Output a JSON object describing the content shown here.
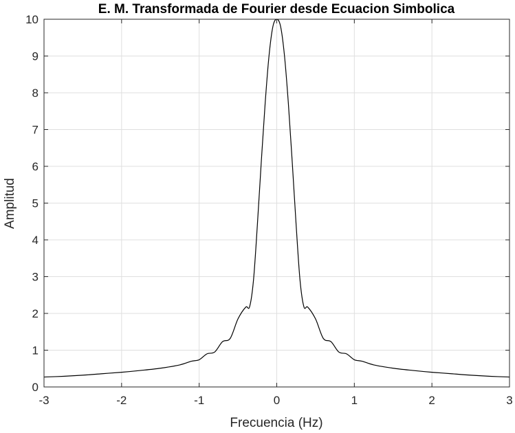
{
  "chart_data": {
    "type": "line",
    "title": "E. M. Transformada de Fourier desde Ecuacion Simbolica",
    "xlabel": "Frecuencia (Hz)",
    "ylabel": "Amplitud",
    "xlim": [
      -3,
      3
    ],
    "ylim": [
      0,
      10
    ],
    "xticks": [
      -3,
      -2,
      -1,
      0,
      1,
      2,
      3
    ],
    "yticks": [
      0,
      1,
      2,
      3,
      4,
      5,
      6,
      7,
      8,
      9,
      10
    ],
    "xtick_labels": [
      "-3",
      "-2",
      "-1",
      "0",
      "1",
      "2",
      "3"
    ],
    "ytick_labels": [
      "0",
      "1",
      "2",
      "3",
      "4",
      "5",
      "6",
      "7",
      "8",
      "9",
      "10"
    ],
    "grid": true,
    "legend": "none",
    "series": [
      {
        "color": "#000000",
        "x": [
          -3.0,
          -2.75,
          -2.5,
          -2.25,
          -2.0,
          -1.75,
          -1.5,
          -1.25,
          -1.1,
          -1.0,
          -0.9,
          -0.8,
          -0.7,
          -0.6,
          -0.5,
          -0.4,
          -0.35,
          -0.3,
          -0.25,
          -0.2,
          -0.15,
          -0.1,
          -0.05,
          0.0,
          0.05,
          0.1,
          0.15,
          0.2,
          0.25,
          0.3,
          0.35,
          0.4,
          0.5,
          0.6,
          0.7,
          0.8,
          0.9,
          1.0,
          1.1,
          1.25,
          1.5,
          1.75,
          2.0,
          2.25,
          2.5,
          2.75,
          3.0
        ],
        "y": [
          0.27,
          0.29,
          0.32,
          0.36,
          0.4,
          0.45,
          0.51,
          0.6,
          0.7,
          0.74,
          0.9,
          0.95,
          1.23,
          1.32,
          1.85,
          2.17,
          2.18,
          2.9,
          4.4,
          6.1,
          7.7,
          9.0,
          9.8,
          10.0,
          9.8,
          9.0,
          7.7,
          6.1,
          4.4,
          2.9,
          2.18,
          2.17,
          1.85,
          1.32,
          1.23,
          0.95,
          0.9,
          0.74,
          0.7,
          0.6,
          0.51,
          0.45,
          0.4,
          0.36,
          0.32,
          0.29,
          0.27
        ]
      }
    ]
  }
}
